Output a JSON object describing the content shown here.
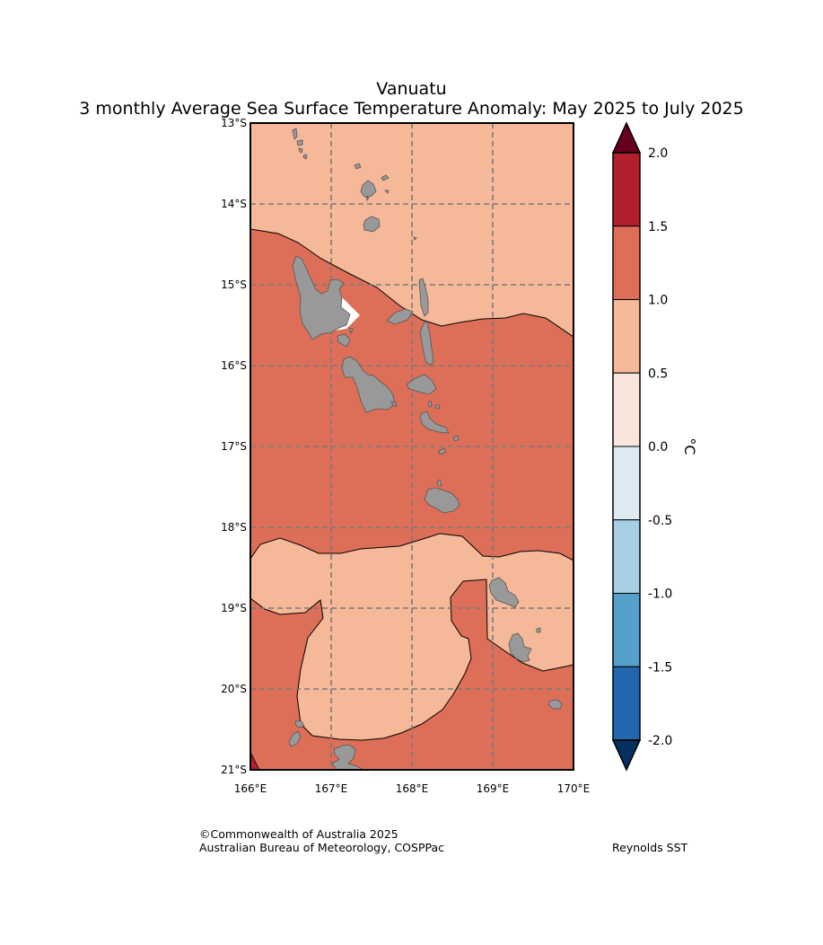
{
  "title": {
    "line1": "Vanuatu",
    "line2": "3 monthly Average Sea Surface Temperature Anomaly: May 2025 to July 2025"
  },
  "map": {
    "lon_ticks": [
      "166°E",
      "167°E",
      "168°E",
      "169°E",
      "170°E"
    ],
    "lat_ticks": [
      "13°S",
      "14°S",
      "15°S",
      "16°S",
      "17°S",
      "18°S",
      "19°S",
      "20°S",
      "21°S"
    ],
    "lon_range": [
      166,
      170
    ],
    "lat_range": [
      -21,
      -13
    ],
    "grid": "dashed",
    "land_color": "#999999",
    "anomaly_regions": [
      {
        "range": "0.5 to 1.0",
        "color": "#f5b899"
      },
      {
        "range": "1.0 to 1.5",
        "color": "#dd6f59"
      },
      {
        "range": "1.5 to 2.0",
        "color": "#b2202e"
      }
    ]
  },
  "colorbar": {
    "unit": "°C",
    "tick_labels": [
      "2.0",
      "1.5",
      "1.0",
      "0.5",
      "0.0",
      "-0.5",
      "-1.0",
      "-1.5",
      "-2.0"
    ],
    "colors_top_to_bottom": [
      "#b2202e",
      "#dd6f59",
      "#f5b899",
      "#f8e5dc",
      "#dfebf2",
      "#a7cfe3",
      "#559fcb",
      "#2266ac"
    ],
    "extend_max_color": "#67001f",
    "extend_min_color": "#053061"
  },
  "footer": {
    "copyright": "©Commonwealth of Australia 2025",
    "agency": "Australian Bureau of Meteorology, COSPPac",
    "dataset": "Reynolds SST"
  }
}
